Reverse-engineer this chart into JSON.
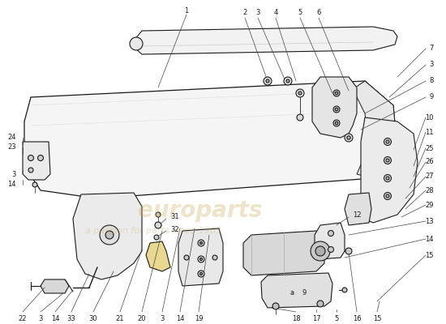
{
  "bg_color": "#ffffff",
  "line_color": "#1a1a1a",
  "lw": 0.8,
  "wm_color": "#c8a850",
  "wm_alpha": 0.3,
  "figsize": [
    5.5,
    4.0
  ],
  "dpi": 100,
  "label_fs": 6.0,
  "wm_x": 160,
  "wm_y": 250,
  "wm2_x": 155,
  "wm2_y": 275,
  "xlim": [
    0,
    550
  ],
  "ylim": [
    0,
    400
  ],
  "y_flip": true
}
